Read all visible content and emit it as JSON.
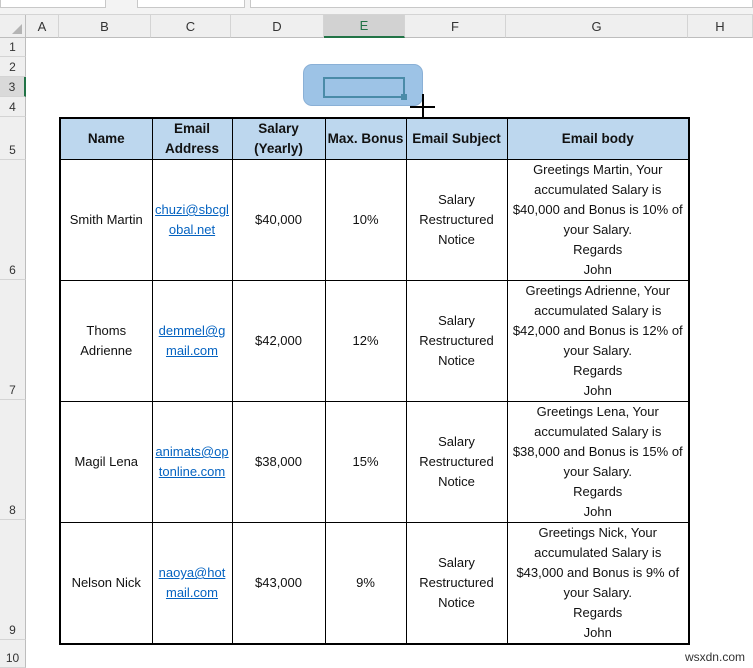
{
  "columns": [
    "A",
    "B",
    "C",
    "D",
    "E",
    "F",
    "G",
    "H"
  ],
  "rows": [
    "1",
    "2",
    "3",
    "4",
    "5",
    "6",
    "7",
    "8",
    "9",
    "10"
  ],
  "table": {
    "headers": [
      "Name",
      "Email Address",
      "Salary (Yearly)",
      "Max. Bonus",
      "Email Subject",
      "Email body"
    ],
    "rows": [
      {
        "name": "Smith Martin",
        "email": "chuzi@sbcglobal.net",
        "salary": "$40,000",
        "bonus": "10%",
        "subject": "Salary Restructured Notice",
        "body": "Greetings Martin, Your accumulated Salary is $40,000 and Bonus is 10% of your Salary.",
        "regards": "Regards",
        "sign": "John"
      },
      {
        "name": "Thoms Adrienne",
        "email": "demmel@gmail.com",
        "salary": "$42,000",
        "bonus": "12%",
        "subject": "Salary Restructured Notice",
        "body": "Greetings Adrienne, Your accumulated Salary is $42,000 and Bonus is 12% of your Salary.",
        "regards": "Regards",
        "sign": "John"
      },
      {
        "name": "Magil Lena",
        "email": "animats@optonline.com",
        "salary": "$38,000",
        "bonus": "15%",
        "subject": "Salary Restructured Notice",
        "body": "Greetings Lena, Your accumulated Salary is $38,000 and Bonus is 15% of your Salary.",
        "regards": "Regards",
        "sign": "John"
      },
      {
        "name": "Nelson  Nick",
        "email": "naoya@hotmail.com",
        "salary": "$43,000",
        "bonus": "9%",
        "subject": "Salary Restructured Notice",
        "body": "Greetings Nick, Your accumulated Salary is $43,000 and Bonus is 9% of your Salary.",
        "regards": "Regards",
        "sign": "John"
      }
    ]
  },
  "watermark": "wsxdn.com",
  "colors": {
    "header_fill": "#bdd7ee",
    "shape_fill": "#9dc3e6",
    "link": "#0563c1",
    "excel_green": "#217346"
  }
}
